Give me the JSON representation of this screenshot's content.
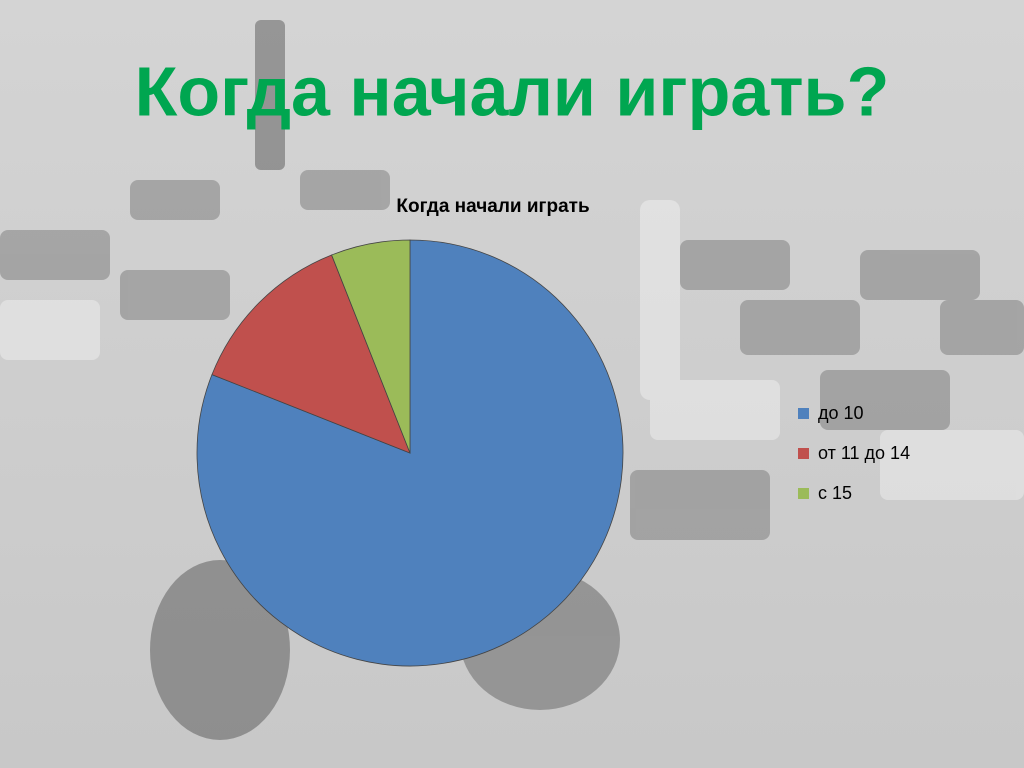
{
  "slide_title": "Когда начали играть?",
  "chart_data": {
    "type": "pie",
    "title": "Когда начали играть",
    "categories": [
      "до 10",
      "от 11 до 14",
      "с 15"
    ],
    "values": [
      81,
      13,
      6
    ],
    "colors": [
      "#4f81bd",
      "#c0504d",
      "#9bbb59"
    ],
    "legend": "right"
  }
}
